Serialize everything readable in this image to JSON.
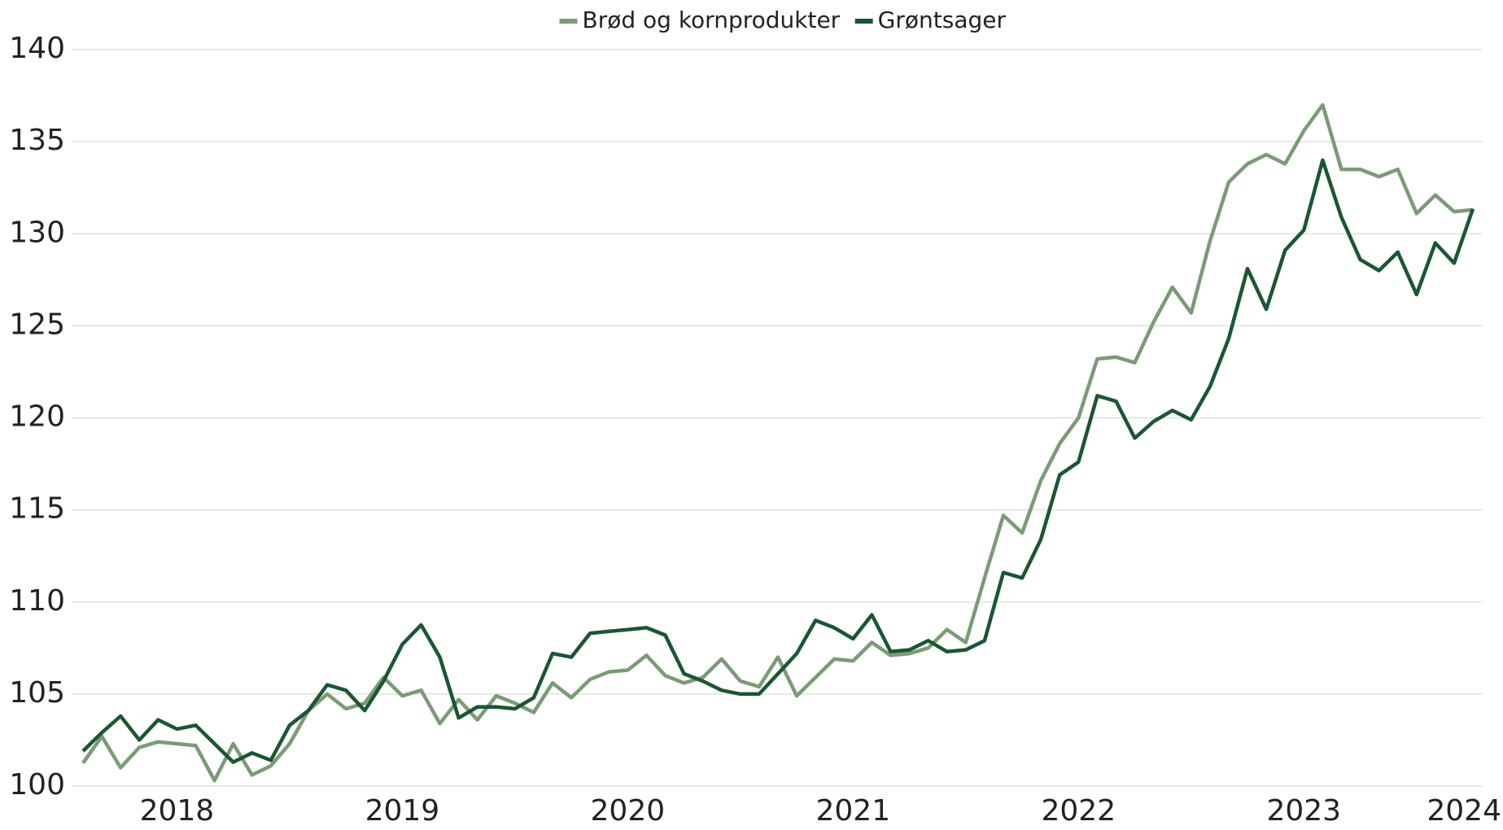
{
  "chart_data": {
    "type": "line",
    "categories": [
      null,
      null,
      null,
      null,
      null,
      "2018",
      null,
      null,
      null,
      null,
      null,
      null,
      null,
      null,
      null,
      null,
      null,
      "2019",
      null,
      null,
      null,
      null,
      null,
      null,
      null,
      null,
      null,
      null,
      null,
      "2020",
      null,
      null,
      null,
      null,
      null,
      null,
      null,
      null,
      null,
      null,
      null,
      "2021",
      null,
      null,
      null,
      null,
      null,
      null,
      null,
      null,
      null,
      null,
      null,
      "2022",
      null,
      null,
      null,
      null,
      null,
      null,
      null,
      null,
      null,
      null,
      null,
      "2023",
      null,
      null,
      null,
      null,
      null,
      null,
      null,
      null,
      "2024"
    ],
    "series": [
      {
        "name": "Brød og kornprodukter",
        "color": "#7a9b76",
        "values": [
          101.25,
          102.7,
          101.0,
          102.1,
          102.4,
          102.3,
          102.2,
          100.3,
          102.3,
          100.6,
          101.1,
          102.3,
          104.1,
          105.0,
          104.2,
          104.5,
          105.9,
          104.9,
          105.2,
          103.4,
          104.7,
          103.6,
          104.9,
          104.5,
          104.0,
          105.6,
          104.8,
          105.8,
          106.2,
          106.3,
          107.1,
          106.0,
          105.6,
          105.9,
          106.9,
          105.7,
          105.4,
          107.0,
          104.9,
          105.9,
          106.9,
          106.8,
          107.8,
          107.1,
          107.2,
          107.5,
          108.5,
          107.8,
          111.3,
          114.7,
          113.75,
          116.6,
          118.6,
          120.0,
          123.2,
          123.3,
          123.0,
          125.2,
          127.1,
          125.7,
          129.6,
          132.8,
          133.8,
          134.3,
          133.8,
          135.6,
          137.0,
          133.5,
          133.5,
          133.1,
          133.5,
          131.1,
          132.1,
          131.2,
          131.3
        ]
      },
      {
        "name": "Grøntsager",
        "color": "#1a5632",
        "values": [
          101.9,
          102.9,
          103.8,
          102.5,
          103.6,
          103.1,
          103.3,
          102.3,
          101.3,
          101.8,
          101.4,
          103.3,
          104.1,
          105.5,
          105.2,
          104.1,
          105.7,
          107.7,
          108.75,
          107.0,
          103.7,
          104.3,
          104.3,
          104.2,
          104.8,
          107.2,
          107.0,
          108.3,
          108.4,
          108.5,
          108.6,
          108.2,
          106.1,
          105.7,
          105.2,
          105.0,
          105.0,
          106.1,
          107.2,
          109.0,
          108.6,
          108.0,
          109.3,
          107.3,
          107.4,
          107.9,
          107.3,
          107.4,
          107.9,
          111.6,
          111.3,
          113.4,
          116.9,
          117.6,
          121.2,
          120.9,
          118.9,
          119.8,
          120.4,
          119.9,
          121.7,
          124.3,
          128.1,
          125.9,
          129.1,
          130.2,
          134.0,
          130.9,
          128.6,
          128.0,
          129.0,
          126.7,
          129.5,
          128.4,
          131.35
        ]
      }
    ],
    "ylim": [
      100,
      140
    ],
    "yticks": [
      100,
      105,
      110,
      115,
      120,
      125,
      130,
      135,
      140
    ],
    "grid": true,
    "legend": "top"
  }
}
